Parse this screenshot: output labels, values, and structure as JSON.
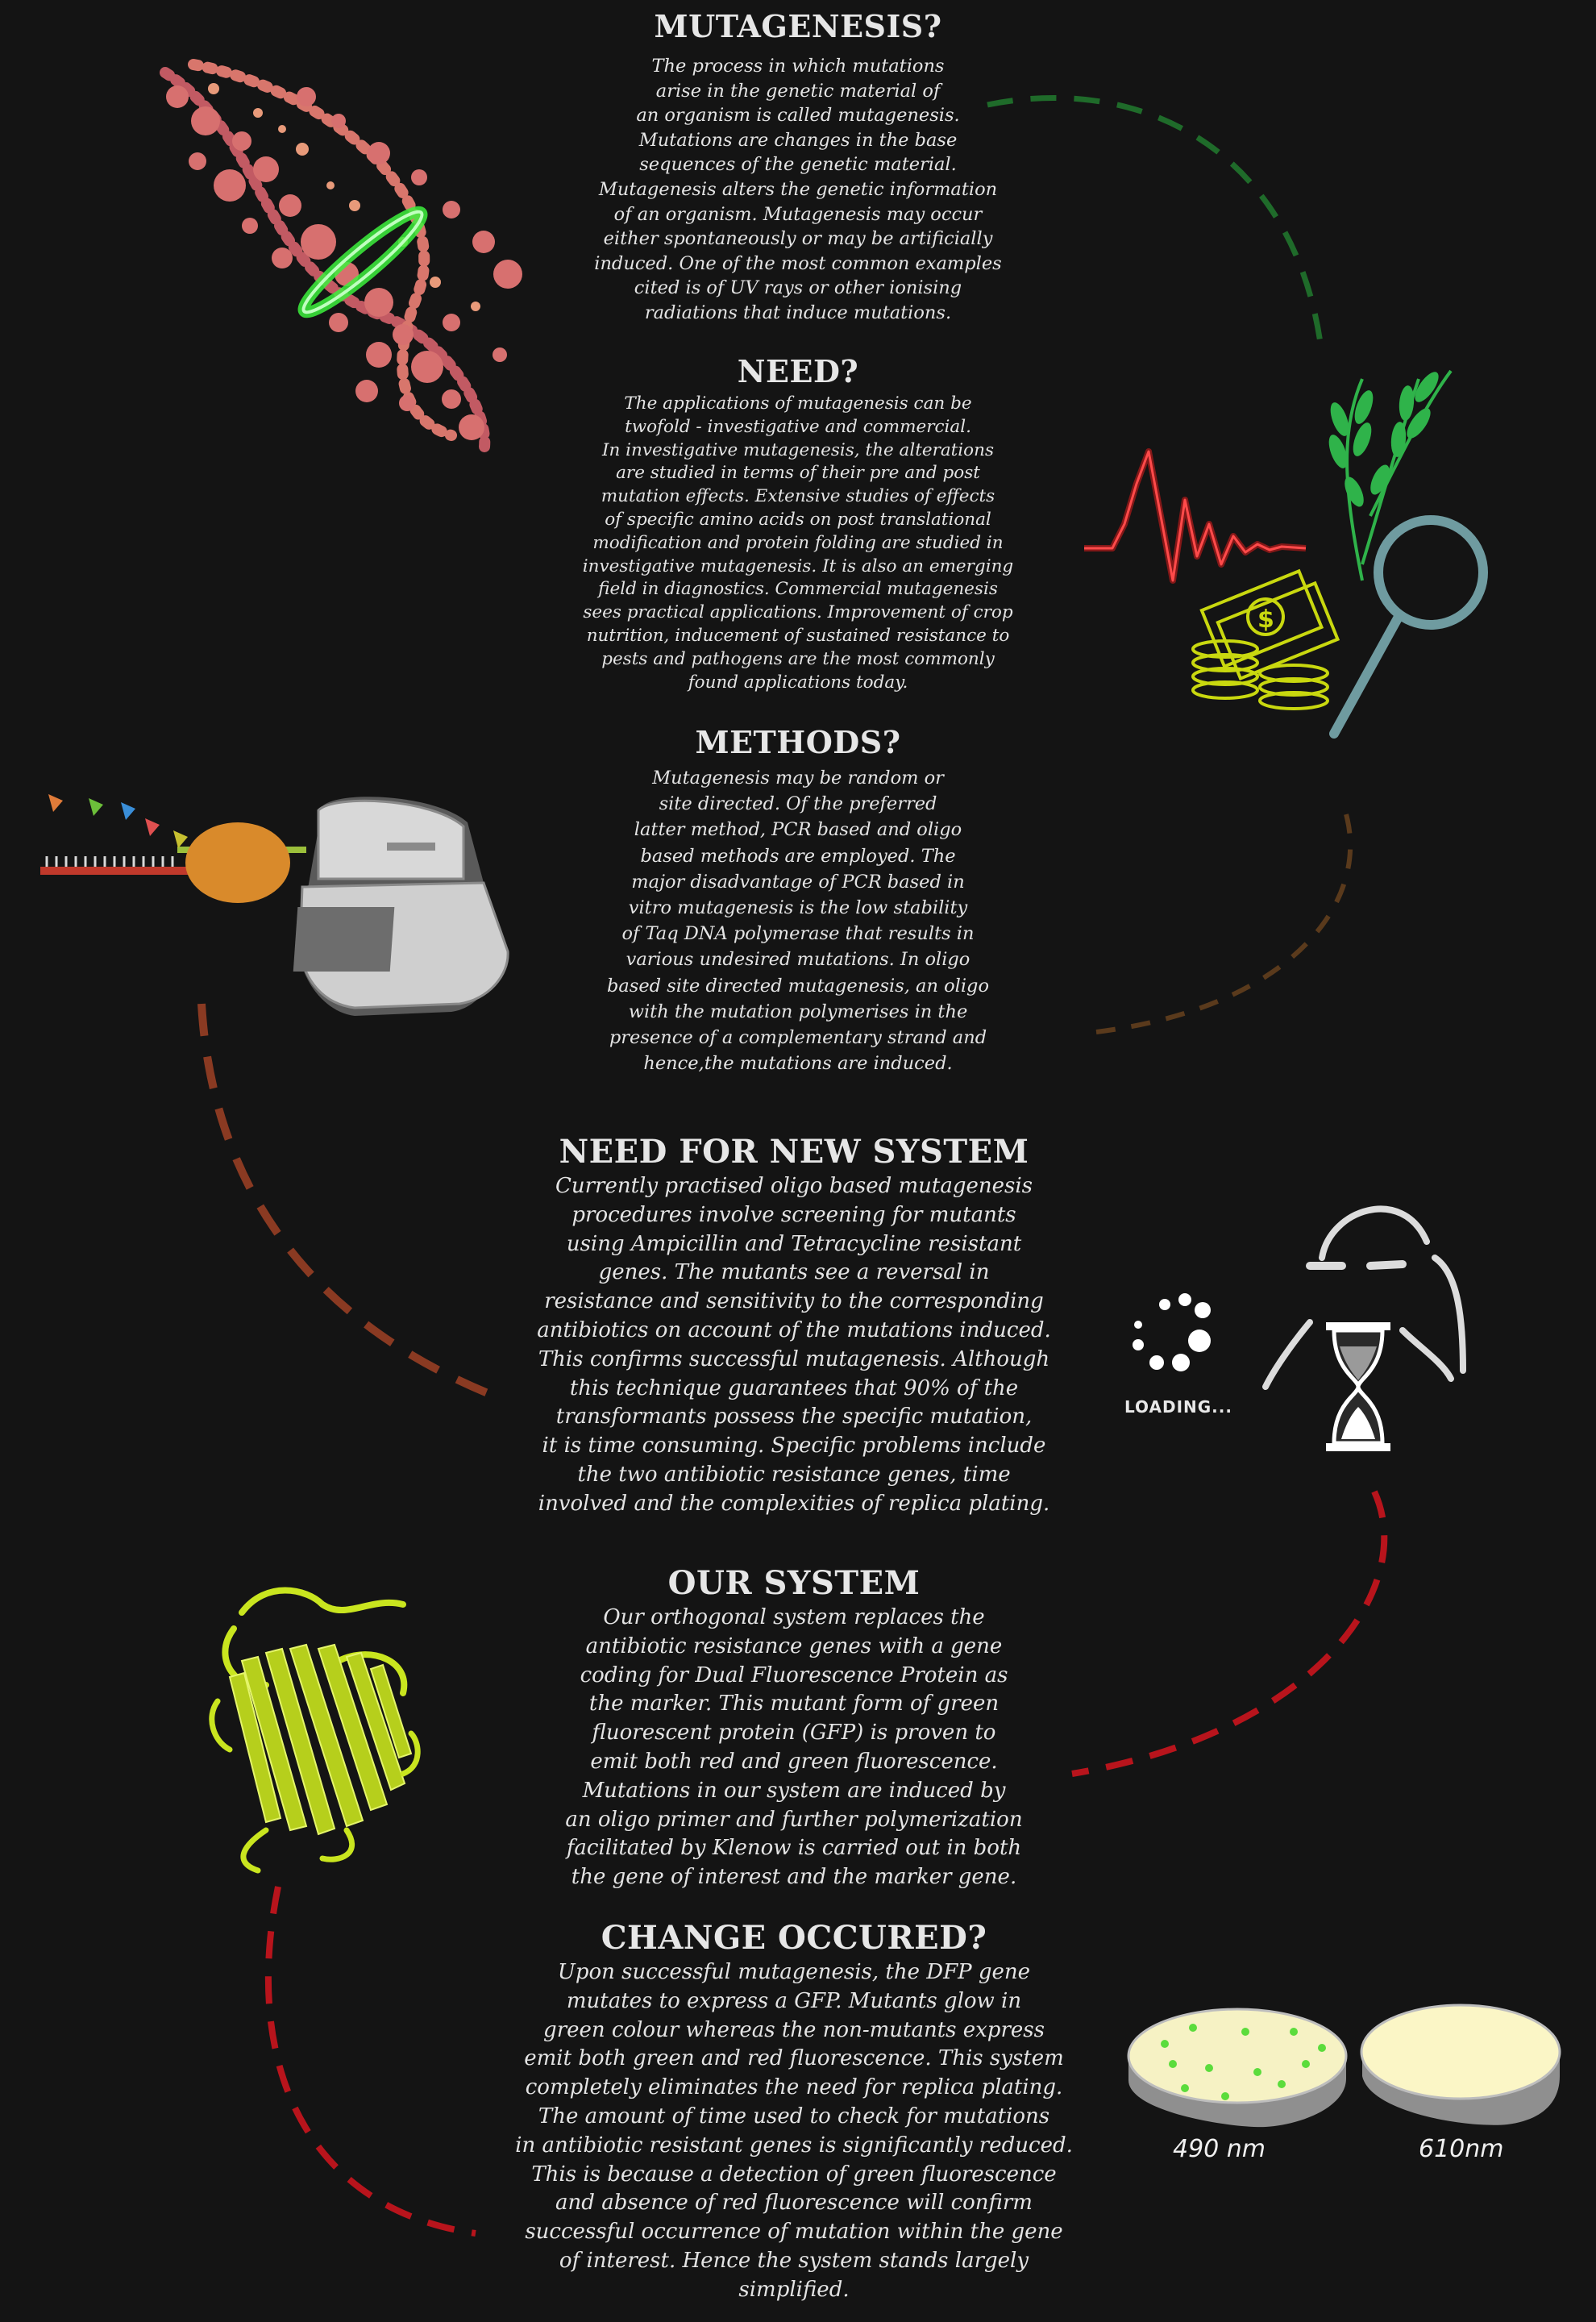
{
  "sections": [
    {
      "heading": "MUTAGENESIS?",
      "body": "The process in which mutations\narise in the genetic material of\nan organism is called mutagenesis.\nMutations are changes in the base\nsequences of the genetic material.\nMutagenesis alters the genetic information\nof an organism. Mutagenesis may occur\neither spontaneously or may be artificially\ninduced. One of the most common examples\ncited is of UV rays or other ionising\nradiations that induce mutations."
    },
    {
      "heading": "NEED?",
      "body": "The applications of mutagenesis can be\ntwofold - investigative and commercial.\nIn investigative mutagenesis, the alterations\nare studied in terms of their pre and post\nmutation effects. Extensive studies of effects\nof specific amino acids on post translational\nmodification and protein folding are studied in\ninvestigative mutagenesis. It is also an emerging\nfield in diagnostics. Commercial mutagenesis\nsees practical applications. Improvement of crop\nnutrition, inducement of sustained resistance to\npests and pathogens are the most commonly\nfound applications today."
    },
    {
      "heading": "METHODS?",
      "body": "Mutagenesis may be random or\nsite directed. Of the preferred\nlatter method, PCR based and oligo\nbased methods are employed. The\nmajor disadvantage of PCR based in\nvitro mutagenesis is the low stability\nof Taq DNA polymerase that results in\nvarious undesired mutations. In oligo\nbased site directed mutagenesis, an oligo\nwith the mutation polymerises in the\npresence of a complementary strand and\nhence,the mutations are induced."
    },
    {
      "heading": "NEED FOR NEW SYSTEM",
      "body": "Currently practised oligo based mutagenesis\nprocedures involve screening for mutants\nusing Ampicillin and Tetracycline resistant\ngenes. The mutants see a reversal in\nresistance and sensitivity to the corresponding\nantibiotics on account of the mutations induced.\nThis confirms successful mutagenesis. Although\nthis technique guarantees that 90% of the\ntransformants possess the specific mutation,\nit is time consuming. Specific problems include\nthe two antibiotic resistance genes, time\ninvolved and the complexities of replica plating."
    },
    {
      "heading": "OUR SYSTEM",
      "body": "Our orthogonal system replaces the\nantibiotic resistance genes with a gene\ncoding for Dual Fluorescence Protein as\nthe marker. This mutant form of green\nfluorescent protein (GFP) is proven to\nemit both red and green fluorescence.\nMutations in our system are induced by\nan oligo primer and further polymerization\nfacilitated by Klenow is carried out in both\nthe gene of interest and the marker gene."
    },
    {
      "heading": "CHANGE OCCURED?",
      "body": "Upon successful mutagenesis, the DFP gene\nmutates to express a GFP. Mutants glow in\ngreen colour whereas the non-mutants express\nemit both green and red fluorescence. This system\ncompletely eliminates the need for replica plating.\nThe amount of time used to check for mutations\nin antibiotic resistant genes is significantly reduced.\nThis is because a detection of green fluorescence\nand absence of red fluorescence will confirm\nsuccessful occurrence of mutation within the gene\nof interest. Hence the system stands largely\nsimplified."
    }
  ],
  "loading_label": "LOADING...",
  "plates": {
    "left_label": "490 nm",
    "right_label": "610nm"
  },
  "icons": {
    "dna": "dna-helix-icon",
    "wheat": "wheat-icon",
    "waveform": "neon-waveform-icon",
    "money": "money-coins-icon",
    "magnifier": "magnifier-icon",
    "pcr": "pcr-machine-icon",
    "polymerase": "polymerase-icon",
    "thinker": "thinking-face-icon",
    "hourglass": "hourglass-icon",
    "spinner": "loading-spinner-icon",
    "protein": "gfp-protein-icon",
    "plates": "petri-dish-icon"
  },
  "colors": {
    "background": "#141414",
    "path_green": "#1f6b2a",
    "path_brown": "#5a3a1c",
    "path_rust": "#8a3a22",
    "path_red": "#b8141c",
    "neon_red": "#e01b1b",
    "neon_green": "#2fb34a",
    "neon_yellow": "#c9d80f",
    "magnifier": "#6f9ba0",
    "protein": "#c9e51f"
  }
}
